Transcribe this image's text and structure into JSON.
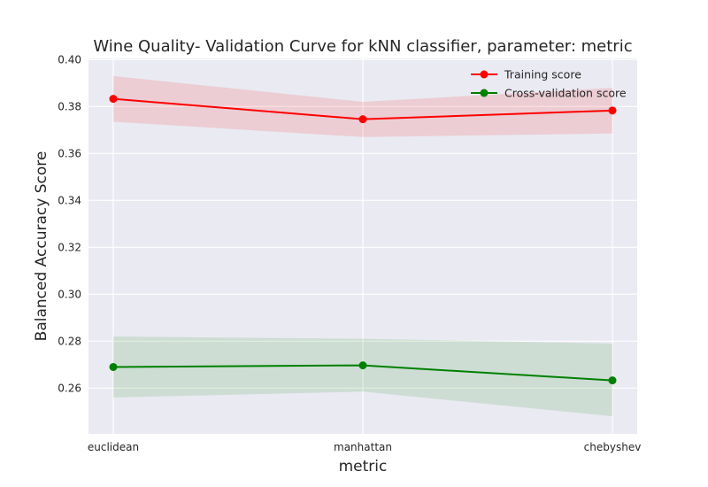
{
  "chart_data": {
    "type": "line",
    "title": "Wine Quality- Validation Curve for kNN classifier, parameter: metric",
    "xlabel": "metric",
    "ylabel": "Balanced Accuracy Score",
    "categories": [
      "euclidean",
      "manhattan",
      "chebyshev"
    ],
    "ylim": [
      0.2405,
      0.4005
    ],
    "yticks": [
      "0.26",
      "0.28",
      "0.30",
      "0.32",
      "0.34",
      "0.36",
      "0.38",
      "0.40"
    ],
    "grid": true,
    "legend_position": "top-right",
    "series": [
      {
        "name": "Training score",
        "color": "#ff0000",
        "values": [
          0.3833,
          0.3746,
          0.3783
        ],
        "lower": [
          0.3735,
          0.367,
          0.3685
        ],
        "upper": [
          0.393,
          0.382,
          0.388
        ]
      },
      {
        "name": "Cross-validation score",
        "color": "#008000",
        "values": [
          0.269,
          0.2697,
          0.2633
        ],
        "lower": [
          0.256,
          0.2585,
          0.248
        ],
        "upper": [
          0.282,
          0.281,
          0.279
        ]
      }
    ]
  }
}
